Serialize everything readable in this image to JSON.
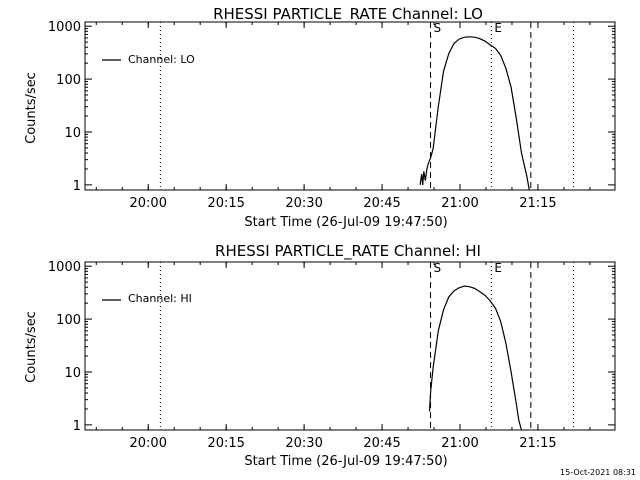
{
  "footer": {
    "timestamp": "15-Oct-2021 08:31"
  },
  "chart_data": [
    {
      "type": "line",
      "title": "RHESSI PARTICLE_RATE Channel: LO",
      "xlabel": "Start Time (26-Jul-09 19:47:50)",
      "ylabel": "Counts/sec",
      "x_unit": "minutes since 19:47:50",
      "xlim": [
        0,
        102
      ],
      "ylim": [
        0.8,
        1200
      ],
      "yscale": "log",
      "xticks": [
        {
          "value": 12.17,
          "label": "20:00"
        },
        {
          "value": 27.17,
          "label": "20:15"
        },
        {
          "value": 42.17,
          "label": "20:30"
        },
        {
          "value": 57.17,
          "label": "20:45"
        },
        {
          "value": 72.17,
          "label": "21:00"
        },
        {
          "value": 87.17,
          "label": "21:15"
        }
      ],
      "yticks": [
        {
          "value": 1,
          "label": "1"
        },
        {
          "value": 10,
          "label": "10"
        },
        {
          "value": 100,
          "label": "100"
        },
        {
          "value": 1000,
          "label": "1000"
        }
      ],
      "legend": {
        "position": "top-left",
        "entries": [
          "Channel: LO"
        ]
      },
      "series": [
        {
          "name": "Channel: LO",
          "x": [
            64.5,
            64.8,
            65.0,
            65.2,
            65.5,
            65.8,
            66.1,
            66.5,
            67.0,
            68.0,
            69.0,
            70.0,
            71.0,
            72.0,
            73.0,
            74.0,
            75.0,
            76.0,
            77.0,
            78.0,
            79.0,
            80.0,
            81.0,
            82.0,
            83.0,
            84.0,
            85.0,
            85.5
          ],
          "y": [
            1.0,
            1.6,
            1.0,
            1.8,
            1.2,
            2.0,
            2.6,
            3.2,
            4.8,
            30,
            140,
            300,
            470,
            570,
            620,
            630,
            620,
            580,
            520,
            440,
            380,
            280,
            160,
            70,
            18,
            4,
            1.5,
            0.8
          ]
        }
      ],
      "vlines": [
        {
          "x": 14.5,
          "style": "dotted"
        },
        {
          "x": 66.5,
          "style": "dashed",
          "label": "S"
        },
        {
          "x": 78.2,
          "style": "dotted",
          "label": "E"
        },
        {
          "x": 85.8,
          "style": "dashed"
        },
        {
          "x": 94.0,
          "style": "dotted"
        }
      ]
    },
    {
      "type": "line",
      "title": "RHESSI PARTICLE_RATE Channel: HI",
      "xlabel": "Start Time (26-Jul-09 19:47:50)",
      "ylabel": "Counts/sec",
      "x_unit": "minutes since 19:47:50",
      "xlim": [
        0,
        102
      ],
      "ylim": [
        0.8,
        1200
      ],
      "yscale": "log",
      "xticks": [
        {
          "value": 12.17,
          "label": "20:00"
        },
        {
          "value": 27.17,
          "label": "20:15"
        },
        {
          "value": 42.17,
          "label": "20:30"
        },
        {
          "value": 57.17,
          "label": "20:45"
        },
        {
          "value": 72.17,
          "label": "21:00"
        },
        {
          "value": 87.17,
          "label": "21:15"
        }
      ],
      "yticks": [
        {
          "value": 1,
          "label": "1"
        },
        {
          "value": 10,
          "label": "10"
        },
        {
          "value": 100,
          "label": "100"
        },
        {
          "value": 1000,
          "label": "1000"
        }
      ],
      "legend": {
        "position": "top-left",
        "entries": [
          "Channel: HI"
        ]
      },
      "series": [
        {
          "name": "Channel: HI",
          "x": [
            66.3,
            66.5,
            67.0,
            68.0,
            69.0,
            70.0,
            71.0,
            72.0,
            73.0,
            74.0,
            75.0,
            76.0,
            77.0,
            78.0,
            79.0,
            80.0,
            81.0,
            82.0,
            83.0,
            83.5,
            84.0
          ],
          "y": [
            1.8,
            4.0,
            12,
            60,
            150,
            260,
            340,
            390,
            420,
            410,
            380,
            330,
            280,
            220,
            160,
            90,
            35,
            10,
            2.5,
            1.2,
            0.8
          ]
        }
      ],
      "vlines": [
        {
          "x": 14.5,
          "style": "dotted"
        },
        {
          "x": 66.5,
          "style": "dashed",
          "label": "S"
        },
        {
          "x": 78.2,
          "style": "dotted",
          "label": "E"
        },
        {
          "x": 85.8,
          "style": "dashed"
        },
        {
          "x": 94.0,
          "style": "dotted"
        }
      ]
    }
  ]
}
